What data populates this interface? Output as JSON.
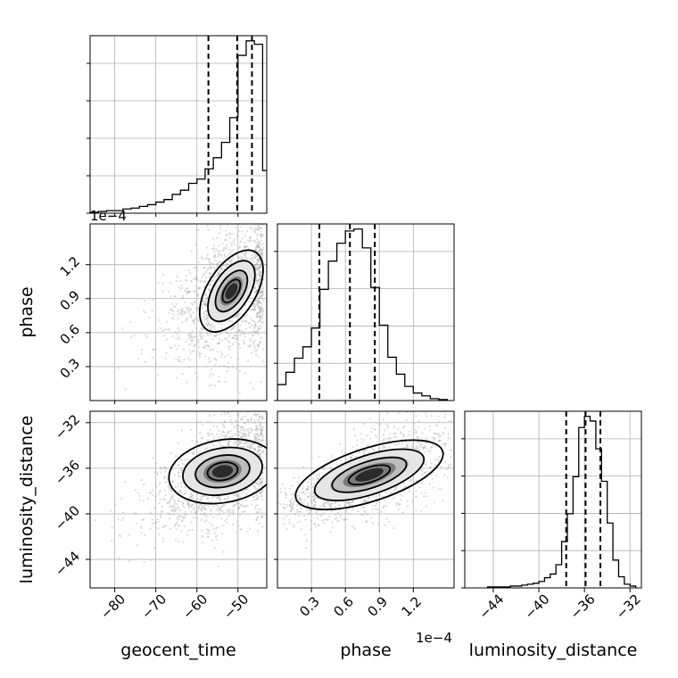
{
  "chart_data": {
    "type": "corner",
    "parameters": [
      {
        "name": "geocent_time",
        "label": "geocent_time",
        "range": [
          -86,
          -43
        ],
        "ticks": [
          -80,
          -70,
          -60,
          -50
        ],
        "tick_labels": [
          "−80",
          "−70",
          "−60",
          "−50"
        ],
        "offset_text": ""
      },
      {
        "name": "phase",
        "label": "phase",
        "range": [
          0.0,
          1.56
        ],
        "ticks": [
          0.3,
          0.6,
          0.9,
          1.2
        ],
        "tick_labels": [
          "0.3",
          "0.6",
          "0.9",
          "1.2"
        ],
        "offset_text": "1e−4"
      },
      {
        "name": "luminosity_distance",
        "label": "luminosity_distance",
        "range": [
          -46.5,
          -31.0
        ],
        "ticks": [
          -44,
          -40,
          -36,
          -32
        ],
        "tick_labels": [
          "−44",
          "−40",
          "−36",
          "−32"
        ],
        "offset_text": ""
      }
    ],
    "phase_y_offset_text": "1e−4",
    "histograms": [
      {
        "parameter": "geocent_time",
        "bin_edges": [
          -86,
          -84,
          -82,
          -80,
          -78,
          -76,
          -74,
          -72,
          -70,
          -68,
          -66,
          -64,
          -62,
          -60,
          -58,
          -56,
          -54,
          -52,
          -50,
          -48,
          -46,
          -44,
          -42
        ],
        "counts": [
          1,
          2,
          3,
          3,
          5,
          6,
          8,
          10,
          13,
          16,
          22,
          27,
          35,
          40,
          52,
          65,
          83,
          112,
          185,
          202,
          198,
          50
        ],
        "quantiles": [
          -57.2,
          -50.2,
          -46.6
        ]
      },
      {
        "parameter": "phase",
        "bin_edges": [
          0.0,
          0.075,
          0.15,
          0.225,
          0.3,
          0.375,
          0.45,
          0.525,
          0.6,
          0.675,
          0.75,
          0.825,
          0.9,
          0.975,
          1.05,
          1.125,
          1.2,
          1.275,
          1.35,
          1.425,
          1.5
        ],
        "counts": [
          17,
          30,
          45,
          57,
          77,
          118,
          148,
          167,
          180,
          182,
          162,
          120,
          80,
          46,
          28,
          15,
          8,
          5,
          2,
          1
        ],
        "quantiles": [
          0.37,
          0.64,
          0.86
        ]
      },
      {
        "parameter": "luminosity_distance",
        "bin_edges": [
          -44.5,
          -44.0,
          -43.5,
          -43.0,
          -42.5,
          -42.0,
          -41.5,
          -41.0,
          -40.5,
          -40.0,
          -39.5,
          -39.0,
          -38.5,
          -38.0,
          -37.5,
          -37.0,
          -36.5,
          -36.0,
          -35.5,
          -35.0,
          -34.5,
          -34.0,
          -33.5,
          -33.0,
          -32.5,
          -32.0,
          -31.5
        ],
        "counts": [
          1,
          1,
          1,
          1,
          2,
          2,
          3,
          4,
          5,
          7,
          11,
          15,
          25,
          50,
          80,
          120,
          173,
          185,
          180,
          150,
          115,
          70,
          30,
          12,
          4,
          2
        ],
        "quantiles": [
          -37.6,
          -35.9,
          -34.6
        ]
      }
    ],
    "density_2d": [
      {
        "x": "geocent_time",
        "y": "phase",
        "levels": 4
      },
      {
        "x": "geocent_time",
        "y": "luminosity_distance",
        "levels": 4
      },
      {
        "x": "phase",
        "y": "luminosity_distance",
        "levels": 4
      }
    ],
    "grid": true
  },
  "colors": {
    "ink": "#000000",
    "grid": "#b0b0b0",
    "scatter": "#9a9a9a",
    "background": "#ffffff"
  }
}
